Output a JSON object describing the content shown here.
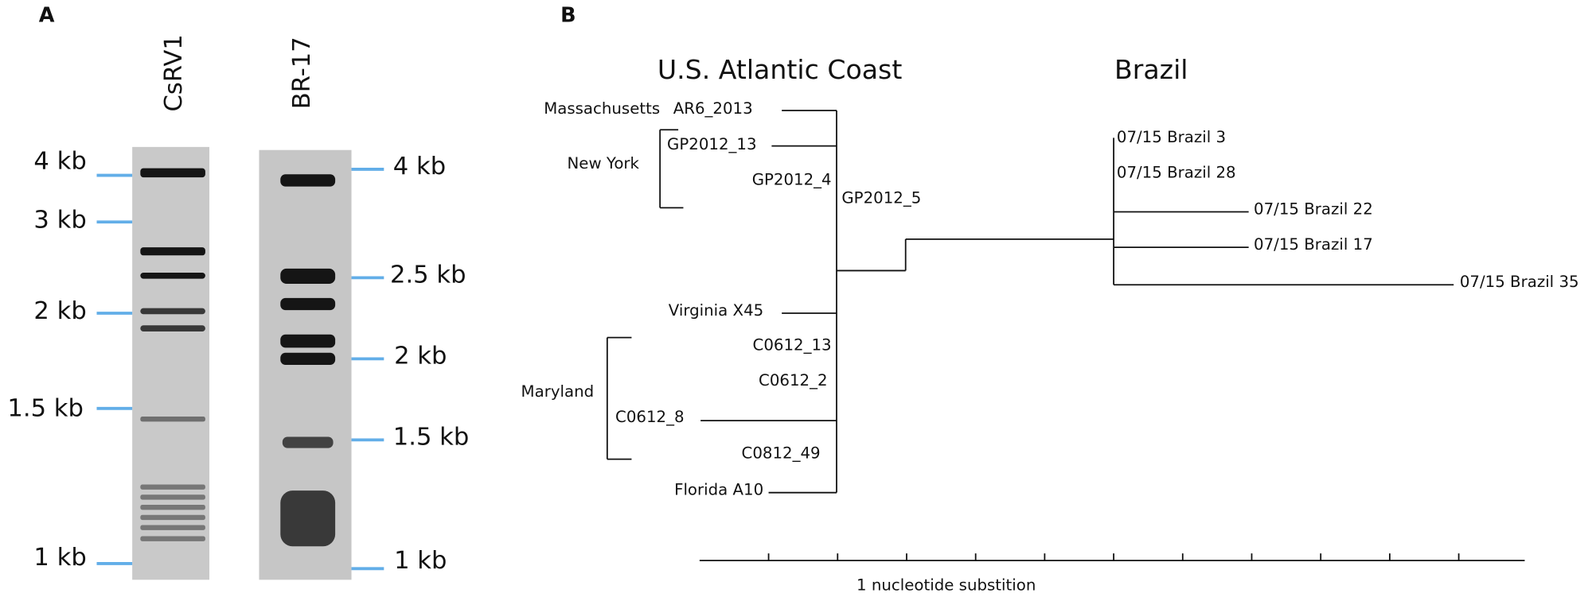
{
  "panel_a": {
    "label": "A",
    "lanes": [
      "CsRV1",
      "BR-17"
    ],
    "left_markers": [
      "4 kb",
      "3 kb",
      "2 kb",
      "1.5 kb",
      "1 kb"
    ],
    "right_markers": [
      "4 kb",
      "2.5 kb",
      "2 kb",
      "1.5 kb",
      "1 kb"
    ]
  },
  "panel_b": {
    "label": "B",
    "headers": [
      "U.S. Atlantic Coast",
      "Brazil"
    ],
    "groups": [
      "Massachusetts",
      "New York",
      "Maryland"
    ],
    "leaves": [
      "AR6_2013",
      "GP2012_13",
      "GP2012_4",
      "GP2012_5",
      "Virginia X45",
      "C0612_13",
      "C0612_2",
      "C0612_8",
      "C0812_49",
      "Florida A10",
      "07/15 Brazil 3",
      "07/15 Brazil 28",
      "07/15 Brazil 22",
      "07/15 Brazil 17",
      "07/15 Brazil 35"
    ],
    "scale_label": "1 nucleotide substition"
  }
}
